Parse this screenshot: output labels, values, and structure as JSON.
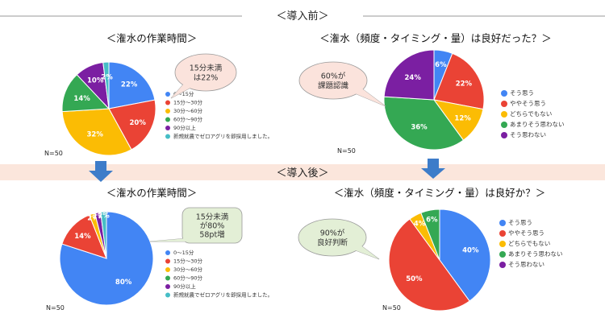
{
  "banners": {
    "before": "＜導入前＞",
    "after": "＜導入後＞"
  },
  "colors": {
    "blue": "#4285f4",
    "red": "#ea4335",
    "yellow": "#fbbc04",
    "green": "#34a853",
    "purple": "#7b1fa2",
    "teal": "#46bdc6",
    "arrow": "#3d7cc9",
    "callout_pink": "#fbe3dc",
    "callout_green": "#e3efd6",
    "banner_bg": "#fbe6dc"
  },
  "chart_data": [
    {
      "id": "before_time",
      "type": "pie",
      "title": "＜潅水の作業時間＞",
      "n_label": "N=50",
      "categories": [
        "0〜15分",
        "15分〜30分",
        "30分〜60分",
        "60分〜90分",
        "90分以上",
        "新規就農でゼロアグリを即採用しました。"
      ],
      "values": [
        22,
        20,
        32,
        14,
        10,
        2
      ],
      "labels": [
        "22%",
        "20%",
        "32%",
        "14%",
        "10%",
        "2%"
      ],
      "colors": [
        "#4285f4",
        "#ea4335",
        "#fbbc04",
        "#34a853",
        "#7b1fa2",
        "#46bdc6"
      ],
      "callout": [
        "15分未満",
        "は22%"
      ]
    },
    {
      "id": "before_quality",
      "type": "pie",
      "title": "＜潅水（頻度・タイミング・量）は良好だった？＞",
      "n_label": "N=50",
      "categories": [
        "そう思う",
        "ややそう思う",
        "どちらでもない",
        "あまりそう思わない",
        "そう思わない"
      ],
      "values": [
        6,
        22,
        12,
        36,
        24
      ],
      "labels": [
        "6%",
        "22%",
        "12%",
        "36%",
        "24%"
      ],
      "colors": [
        "#4285f4",
        "#ea4335",
        "#fbbc04",
        "#34a853",
        "#7b1fa2"
      ],
      "callout": [
        "60%が",
        "課題認識"
      ]
    },
    {
      "id": "after_time",
      "type": "pie",
      "title": "＜潅水の作業時間＞",
      "n_label": "N=50",
      "categories": [
        "0〜15分",
        "15分〜30分",
        "30分〜60分",
        "60分〜90分",
        "90分以上",
        "新規就農でゼロアグリを即採用しました。"
      ],
      "values": [
        80,
        14,
        2,
        0,
        2,
        2
      ],
      "labels": [
        "80%",
        "14%",
        "2%",
        "",
        "2%",
        "2%"
      ],
      "colors": [
        "#4285f4",
        "#ea4335",
        "#fbbc04",
        "#34a853",
        "#7b1fa2",
        "#46bdc6"
      ],
      "callout": [
        "15分未満",
        "が80%",
        "58pt増"
      ]
    },
    {
      "id": "after_quality",
      "type": "pie",
      "title": "＜潅水（頻度・タイミング・量）は良好か？＞",
      "n_label": "N=50",
      "categories": [
        "そう思う",
        "ややそう思う",
        "どちらでもない",
        "あまりそう思わない",
        "そう思わない"
      ],
      "values": [
        40,
        50,
        4,
        6,
        0
      ],
      "labels": [
        "40%",
        "50%",
        "4%",
        "6%",
        ""
      ],
      "colors": [
        "#4285f4",
        "#ea4335",
        "#fbbc04",
        "#34a853",
        "#7b1fa2"
      ],
      "callout": [
        "90%が",
        "良好判断"
      ]
    }
  ]
}
